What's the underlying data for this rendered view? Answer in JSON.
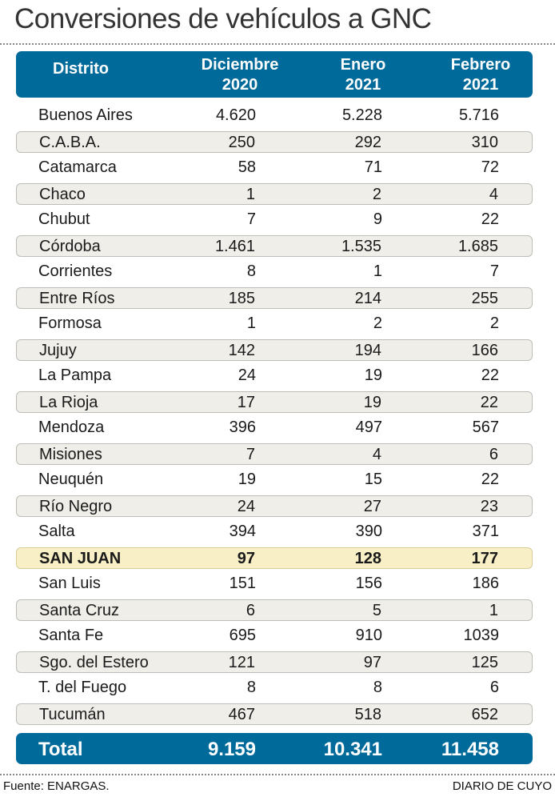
{
  "title": "Conversiones de vehículos a GNC",
  "headers": {
    "district": "Distrito",
    "dec": [
      "Diciembre",
      "2020"
    ],
    "jan": [
      "Enero",
      "2021"
    ],
    "feb": [
      "Febrero",
      "2021"
    ]
  },
  "rows": [
    {
      "name": "Buenos Aires",
      "dec": "4.620",
      "jan": "5.228",
      "feb": "5.716"
    },
    {
      "name": "C.A.B.A.",
      "dec": "250",
      "jan": "292",
      "feb": "310"
    },
    {
      "name": "Catamarca",
      "dec": "58",
      "jan": "71",
      "feb": "72"
    },
    {
      "name": "Chaco",
      "dec": "1",
      "jan": "2",
      "feb": "4"
    },
    {
      "name": "Chubut",
      "dec": "7",
      "jan": "9",
      "feb": "22"
    },
    {
      "name": "Córdoba",
      "dec": "1.461",
      "jan": "1.535",
      "feb": "1.685"
    },
    {
      "name": "Corrientes",
      "dec": "8",
      "jan": "1",
      "feb": "7"
    },
    {
      "name": "Entre Ríos",
      "dec": "185",
      "jan": "214",
      "feb": "255"
    },
    {
      "name": "Formosa",
      "dec": "1",
      "jan": "2",
      "feb": "2"
    },
    {
      "name": "Jujuy",
      "dec": "142",
      "jan": "194",
      "feb": "166"
    },
    {
      "name": "La Pampa",
      "dec": "24",
      "jan": "19",
      "feb": "22"
    },
    {
      "name": "La Rioja",
      "dec": "17",
      "jan": "19",
      "feb": "22"
    },
    {
      "name": "Mendoza",
      "dec": "396",
      "jan": "497",
      "feb": "567"
    },
    {
      "name": "Misiones",
      "dec": "7",
      "jan": "4",
      "feb": "6"
    },
    {
      "name": "Neuquén",
      "dec": "19",
      "jan": "15",
      "feb": "22"
    },
    {
      "name": "Río Negro",
      "dec": "24",
      "jan": "27",
      "feb": "23"
    },
    {
      "name": "Salta",
      "dec": "394",
      "jan": "390",
      "feb": "371"
    },
    {
      "name": "SAN JUAN",
      "dec": "97",
      "jan": "128",
      "feb": "177",
      "highlight": true
    },
    {
      "name": "San Luis",
      "dec": "151",
      "jan": "156",
      "feb": "186"
    },
    {
      "name": "Santa Cruz",
      "dec": "6",
      "jan": "5",
      "feb": "1"
    },
    {
      "name": "Santa Fe",
      "dec": "695",
      "jan": "910",
      "feb": "1039"
    },
    {
      "name": "Sgo. del Estero",
      "dec": "121",
      "jan": "97",
      "feb": "125"
    },
    {
      "name": "T. del Fuego",
      "dec": "8",
      "jan": "8",
      "feb": "6"
    },
    {
      "name": "Tucumán",
      "dec": "467",
      "jan": "518",
      "feb": "652"
    }
  ],
  "total": {
    "label": "Total",
    "dec": "9.159",
    "jan": "10.341",
    "feb": "11.458"
  },
  "footer": {
    "source": "Fuente: ENARGAS.",
    "brand": "DIARIO DE CUYO"
  },
  "colors": {
    "header": "#006a9a",
    "alt_row": "#efeee9",
    "highlight": "#f8efc6"
  }
}
